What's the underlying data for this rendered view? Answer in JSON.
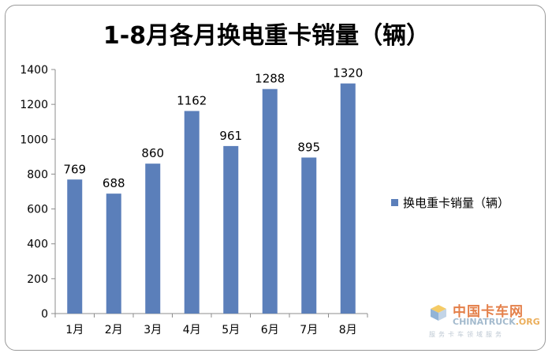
{
  "chart_data": {
    "type": "bar",
    "title": "1-8月各月换电重卡销量（辆）",
    "categories": [
      "1月",
      "2月",
      "3月",
      "4月",
      "5月",
      "6月",
      "7月",
      "8月"
    ],
    "series": [
      {
        "name": "换电重卡销量（辆）",
        "values": [
          769,
          688,
          860,
          1162,
          961,
          1288,
          895,
          1320
        ]
      }
    ],
    "ylim": [
      0,
      1400
    ],
    "yticks": [
      0,
      200,
      400,
      600,
      800,
      1000,
      1200,
      1400
    ],
    "xlabel": "",
    "ylabel": "",
    "grid": false,
    "legend": "right",
    "colors": {
      "bar": "#5b7fba",
      "axis": "#8c8c8c"
    }
  },
  "watermark": {
    "name_cn": "中国卡车网",
    "name_en": "CHINATRUCK",
    "name_en_suffix": ".ORG",
    "tagline": "服务卡车领域服务"
  }
}
